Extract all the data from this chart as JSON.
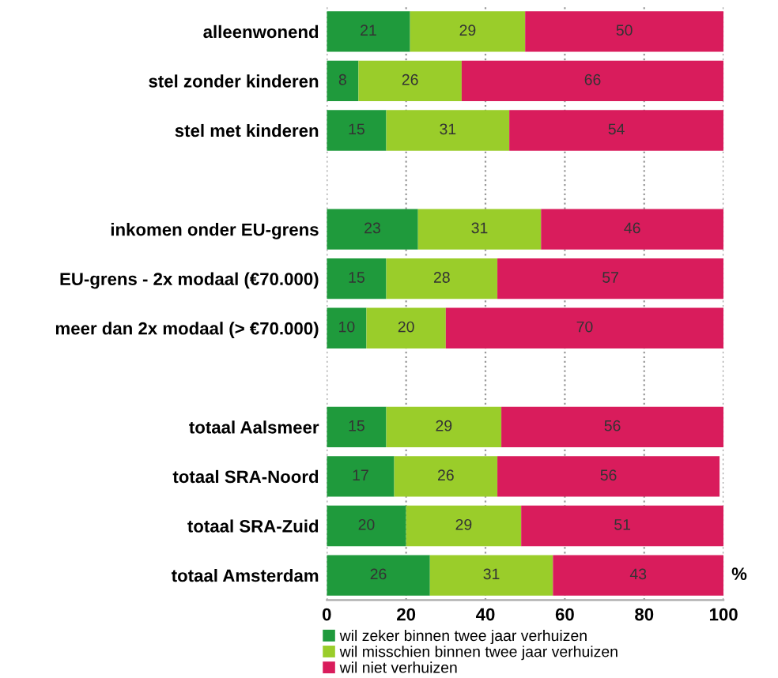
{
  "chart_data": {
    "type": "bar",
    "orientation": "horizontal",
    "stacked": true,
    "xlabel": "%",
    "categories": [
      "alleenwonend",
      "stel zonder kinderen",
      "stel met kinderen",
      null,
      "inkomen onder EU-grens",
      "EU-grens - 2x modaal (€70.000)",
      "meer dan 2x modaal (> €70.000)",
      null,
      "totaal Aalsmeer",
      "totaal SRA-Noord",
      "totaal SRA-Zuid",
      "totaal Amsterdam"
    ],
    "series": [
      {
        "name": "wil zeker binnen twee jaar verhuizen",
        "color": "#1f9a3c",
        "values": [
          21,
          8,
          15,
          null,
          23,
          15,
          10,
          null,
          15,
          17,
          20,
          26
        ]
      },
      {
        "name": "wil misschien binnen twee jaar verhuizen",
        "color": "#9acd2a",
        "values": [
          29,
          26,
          31,
          null,
          31,
          28,
          20,
          null,
          29,
          26,
          29,
          31
        ]
      },
      {
        "name": "wil niet verhuizen",
        "color": "#d91c5c",
        "values": [
          50,
          66,
          54,
          null,
          46,
          57,
          70,
          null,
          56,
          56,
          51,
          43
        ]
      }
    ],
    "xlim": [
      0,
      100
    ],
    "xticks": [
      0,
      20,
      40,
      60,
      80,
      100
    ],
    "grid": "x",
    "legend": "bottom",
    "data_labels": true
  }
}
